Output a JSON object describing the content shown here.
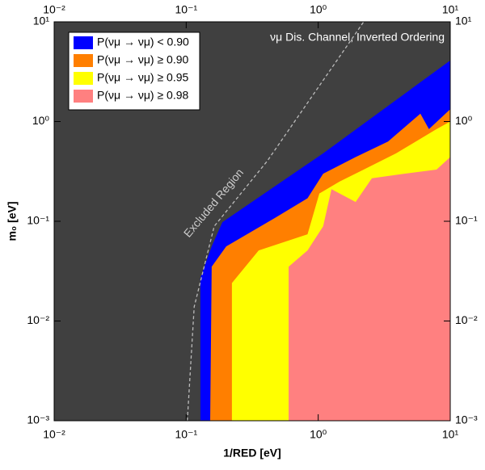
{
  "chart_data": {
    "type": "area",
    "xlabel": "1/RED [eV]",
    "ylabel": "m₀ [eV]",
    "annotations": [
      "νμ Dis. Channel, Inverted Ordering",
      "Excluded Region"
    ],
    "background_color": "#404040",
    "xscale": "log",
    "yscale": "log",
    "xlim": [
      0.01,
      10
    ],
    "ylim": [
      0.001,
      10
    ],
    "xticks": [
      {
        "value": 0.01,
        "label": "10⁻²"
      },
      {
        "value": 0.1,
        "label": "10⁻¹"
      },
      {
        "value": 1,
        "label": "10⁰"
      },
      {
        "value": 10,
        "label": "10¹"
      }
    ],
    "yticks": [
      {
        "value": 0.001,
        "label": "10⁻³"
      },
      {
        "value": 0.01,
        "label": "10⁻²"
      },
      {
        "value": 0.1,
        "label": "10⁻¹"
      },
      {
        "value": 1,
        "label": "10⁰"
      },
      {
        "value": 10,
        "label": "10¹"
      }
    ],
    "series": [
      {
        "name": "P(νμ → νμ) < 0.90",
        "color": "#0000ff",
        "x": [
          0.128,
          0.128,
          0.156,
          0.188,
          1.09,
          10
        ],
        "y": [
          0.001,
          0.027,
          0.056,
          0.098,
          0.48,
          4.1
        ]
      },
      {
        "name": "P(νμ → νμ) ≥ 0.90",
        "color": "#ff7f00",
        "x": [
          0.152,
          0.156,
          0.201,
          0.47,
          0.83,
          1.09,
          1.92,
          3.38,
          5.94,
          6.9,
          10
        ],
        "y": [
          0.001,
          0.035,
          0.056,
          0.108,
          0.17,
          0.3,
          0.44,
          0.63,
          1.2,
          0.84,
          1.33
        ]
      },
      {
        "name": "P(νμ → νμ) ≥ 0.95",
        "color": "#ffff00",
        "x": [
          0.222,
          0.222,
          0.354,
          0.83,
          1.02,
          1.45,
          2.21,
          3.89,
          7.87,
          10
        ],
        "y": [
          0.001,
          0.024,
          0.051,
          0.074,
          0.19,
          0.25,
          0.33,
          0.48,
          0.84,
          1.0
        ]
      },
      {
        "name": "P(νμ → νμ) ≥ 0.98",
        "color": "#ff8080",
        "x": [
          0.597,
          0.597,
          0.83,
          1.09,
          1.26,
          1.92,
          2.55,
          4.49,
          7.87,
          10
        ],
        "y": [
          0.001,
          0.035,
          0.051,
          0.089,
          0.21,
          0.156,
          0.27,
          0.3,
          0.33,
          0.44
        ]
      }
    ],
    "excluded_boundary": {
      "color": "#bbbbbb",
      "x": [
        0.102,
        0.115,
        0.163,
        0.41,
        2.21
      ],
      "y": [
        0.001,
        0.0139,
        0.089,
        0.4,
        10
      ]
    }
  }
}
